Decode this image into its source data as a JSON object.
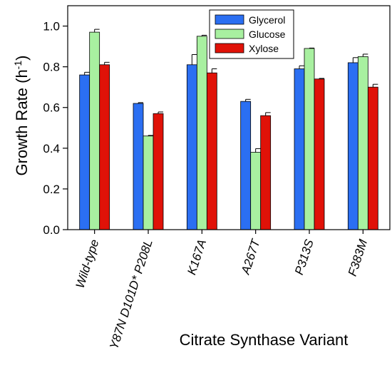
{
  "chart_data": {
    "type": "bar",
    "xlabel": "Citrate Synthase Variant",
    "ylabel_main": "Growth Rate (h",
    "ylabel_sup": "-1",
    "ylabel_close": ")",
    "ylim": [
      0.0,
      1.1
    ],
    "yticks": [
      "0.0",
      "0.2",
      "0.4",
      "0.6",
      "0.8",
      "1.0"
    ],
    "ytick_values": [
      0.0,
      0.2,
      0.4,
      0.6,
      0.8,
      1.0
    ],
    "categories": [
      "Wild-type",
      "Y87N D101D* P208L",
      "K167A",
      "A267T",
      "P313S",
      "F383M"
    ],
    "legend_position": "top-right",
    "series": [
      {
        "name": "Glycerol",
        "color": "#2b6ff2",
        "values": [
          0.76,
          0.62,
          0.81,
          0.63,
          0.79,
          0.82
        ],
        "errors": [
          0.013,
          0.004,
          0.05,
          0.01,
          0.015,
          0.025
        ]
      },
      {
        "name": "Glucose",
        "color": "#a8f0a0",
        "values": [
          0.97,
          0.46,
          0.95,
          0.38,
          0.89,
          0.85
        ],
        "errors": [
          0.014,
          0.003,
          0.005,
          0.018,
          0.002,
          0.012
        ]
      },
      {
        "name": "Xylose",
        "color": "#e01208",
        "values": [
          0.81,
          0.57,
          0.77,
          0.56,
          0.74,
          0.7
        ],
        "errors": [
          0.012,
          0.008,
          0.02,
          0.015,
          0.003,
          0.014
        ]
      }
    ]
  }
}
